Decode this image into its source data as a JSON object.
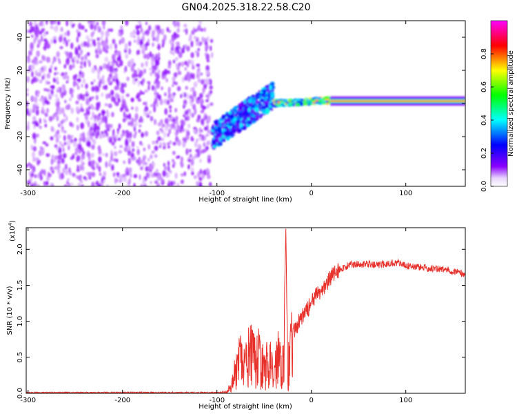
{
  "title": "GN04.2025.318.22.58.C20",
  "chart_data": [
    {
      "type": "heatmap",
      "xlabel": "Height of straight line (km)",
      "ylabel": "Frequency (Hz)",
      "xlim": [
        -302,
        163
      ],
      "ylim": [
        -50,
        50
      ],
      "xticks": [
        -300,
        -200,
        -100,
        0,
        100
      ],
      "yticks": [
        -40,
        -20,
        0,
        20,
        40
      ],
      "colorbar": {
        "label": "Normalized spectral amplitude",
        "range": [
          0,
          1
        ],
        "ticks": [
          0.0,
          0.2,
          0.4,
          0.6,
          0.8
        ],
        "colormap": [
          "#ffffff",
          "#8a00ff",
          "#0000ff",
          "#00ffff",
          "#00ff00",
          "#ffff00",
          "#ff0000",
          "#ff00ff"
        ]
      },
      "regions": [
        {
          "x": [
            -302,
            -105
          ],
          "freq": [
            -50,
            50
          ],
          "amplitude": 0.1,
          "pattern": "scattered noise"
        },
        {
          "x": [
            -105,
            -40
          ],
          "freq_center": [
            -20,
            5
          ],
          "amplitude": 0.35,
          "pattern": "rising broadband band"
        },
        {
          "x": [
            -40,
            20
          ],
          "freq_center": [
            0,
            2
          ],
          "amplitude": 0.6,
          "pattern": "narrow line"
        },
        {
          "x": [
            20,
            163
          ],
          "freq_center": [
            1.5,
            1.5
          ],
          "amplitude": 0.9,
          "pattern": "narrow strong line"
        }
      ]
    },
    {
      "type": "line",
      "xlabel": "Height of straight line (km)",
      "ylabel": "SNR (10 * v/v)",
      "yscale_note": "(x10",
      "yscale_exp": "4",
      "xlim": [
        -302,
        163
      ],
      "ylim": [
        0,
        2.3
      ],
      "xticks": [
        -300,
        -200,
        -100,
        0,
        100
      ],
      "yticks": [
        0.0,
        0.5,
        1.0,
        1.5,
        2.0
      ],
      "series": [
        {
          "color": "#e8302a",
          "x": [
            -302,
            -250,
            -200,
            -150,
            -120,
            -100,
            -90,
            -85,
            -80,
            -75,
            -70,
            -65,
            -60,
            -55,
            -50,
            -45,
            -40,
            -35,
            -30,
            -27,
            -25,
            -20,
            -15,
            -10,
            -5,
            0,
            5,
            10,
            15,
            20,
            25,
            30,
            40,
            50,
            60,
            70,
            80,
            90,
            100,
            110,
            120,
            130,
            140,
            150,
            163
          ],
          "y": [
            0.01,
            0.01,
            0.01,
            0.01,
            0.01,
            0.01,
            0.02,
            0.1,
            0.3,
            0.45,
            0.35,
            0.55,
            0.42,
            0.5,
            0.3,
            0.45,
            0.25,
            0.55,
            0.4,
            2.3,
            0.3,
            0.8,
            0.95,
            1.05,
            1.15,
            1.25,
            1.35,
            1.42,
            1.5,
            1.6,
            1.68,
            1.72,
            1.78,
            1.8,
            1.79,
            1.78,
            1.8,
            1.82,
            1.77,
            1.76,
            1.74,
            1.73,
            1.72,
            1.7,
            1.65
          ]
        }
      ]
    }
  ]
}
